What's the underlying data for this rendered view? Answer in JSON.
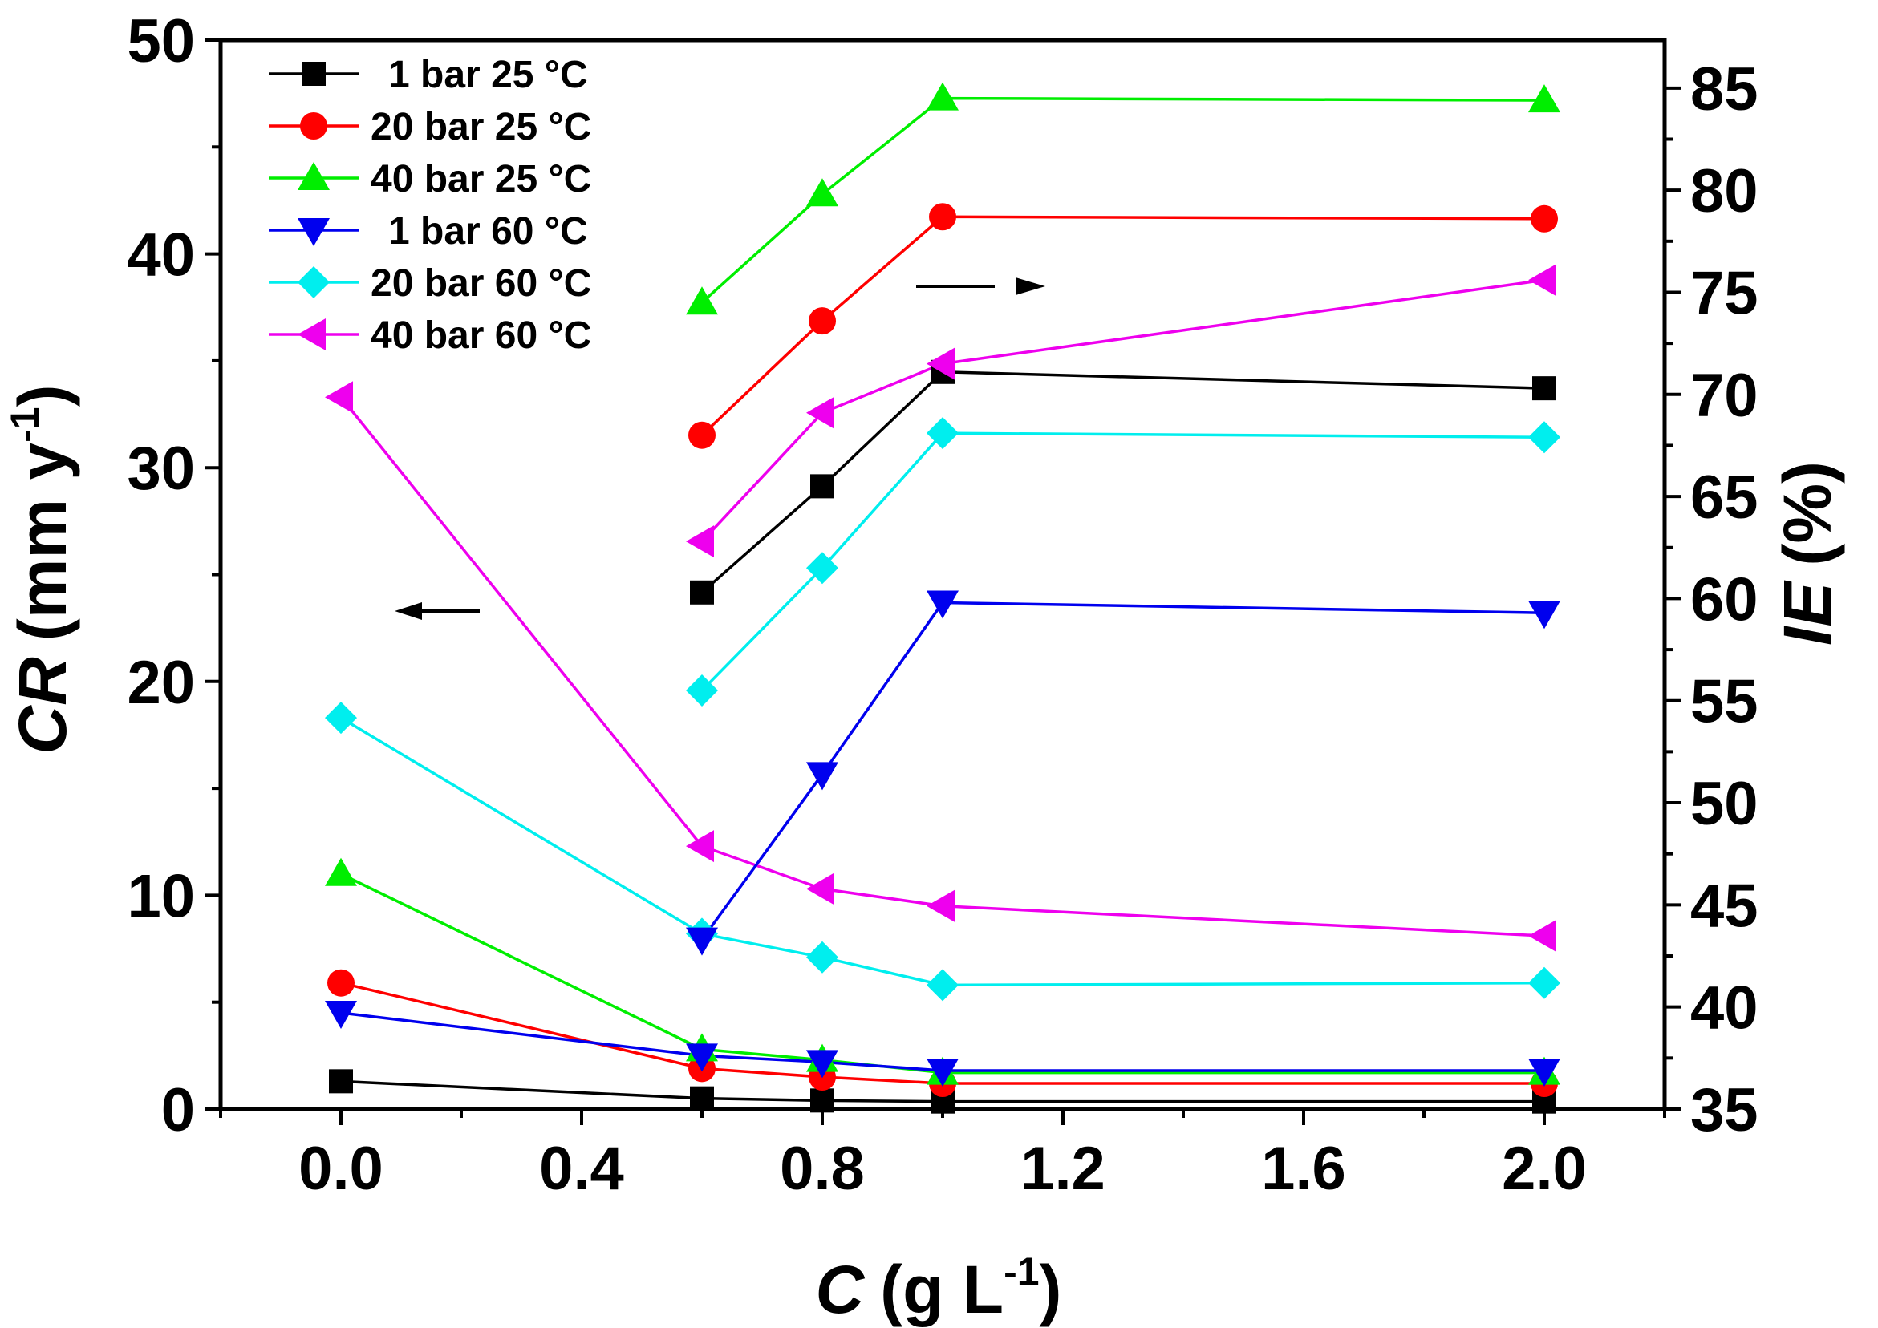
{
  "chart_data": {
    "type": "line",
    "x_axis": {
      "title_var": "C",
      "title_units": "(g L",
      "title_exp": "-1",
      "title_close": ")",
      "range": [
        -0.2,
        2.2
      ],
      "ticks": [
        0.0,
        0.4,
        0.8,
        1.2,
        1.6,
        2.0
      ],
      "tick_labels": [
        "0.0",
        "0.4",
        "0.8",
        "1.2",
        "1.6",
        "2.0"
      ]
    },
    "y_left": {
      "title_var": "CR",
      "title_units": "(mm y",
      "title_exp": "-1",
      "title_close": ")",
      "range": [
        0,
        50
      ],
      "ticks": [
        0,
        10,
        20,
        30,
        40,
        50
      ],
      "tick_labels": [
        "0",
        "10",
        "20",
        "30",
        "40",
        "50"
      ]
    },
    "y_right": {
      "title_var": "IE",
      "title_units": "(%)",
      "range": [
        35,
        87.35
      ],
      "ticks": [
        35,
        40,
        45,
        50,
        55,
        60,
        65,
        70,
        75,
        80,
        85
      ],
      "tick_labels": [
        "35",
        "40",
        "45",
        "50",
        "55",
        "60",
        "65",
        "70",
        "75",
        "80",
        "85"
      ]
    },
    "legend": [
      "1 bar 25 °C",
      "20 bar 25 °C",
      "40 bar 25 °C",
      "1 bar 60 °C",
      "20 bar 60 °C",
      "40 bar 60 °C"
    ],
    "cr_series": [
      {
        "name": "1 bar 25 °C",
        "color": "#000000",
        "marker": "square",
        "x": [
          0,
          0.6,
          0.8,
          1.0,
          2.0
        ],
        "values": [
          1.3,
          0.5,
          0.4,
          0.35,
          0.35
        ]
      },
      {
        "name": "20 bar 25 °C",
        "color": "#ff0000",
        "marker": "circle",
        "x": [
          0,
          0.6,
          0.8,
          1.0,
          2.0
        ],
        "values": [
          5.9,
          1.9,
          1.5,
          1.2,
          1.2
        ]
      },
      {
        "name": "40 bar 25 °C",
        "color": "#00ee00",
        "marker": "triangle-up",
        "x": [
          0,
          0.6,
          0.8,
          1.0,
          2.0
        ],
        "values": [
          11.0,
          2.8,
          2.3,
          1.7,
          1.7
        ]
      },
      {
        "name": "1 bar 60 °C",
        "color": "#0000ee",
        "marker": "triangle-down",
        "x": [
          0,
          0.6,
          0.8,
          1.0,
          2.0
        ],
        "values": [
          4.5,
          2.5,
          2.2,
          1.8,
          1.8
        ]
      },
      {
        "name": "20 bar 60 °C",
        "color": "#00eeee",
        "marker": "diamond",
        "x": [
          0,
          0.6,
          0.8,
          1.0,
          2.0
        ],
        "values": [
          18.3,
          8.2,
          7.1,
          5.8,
          5.9
        ]
      },
      {
        "name": "40 bar 60 °C",
        "color": "#ee00ee",
        "marker": "triangle-left",
        "x": [
          0,
          0.6,
          0.8,
          1.0,
          2.0
        ],
        "values": [
          33.3,
          12.3,
          10.3,
          9.5,
          8.1
        ]
      }
    ],
    "ie_series": [
      {
        "name": "1 bar 25 °C",
        "color": "#000000",
        "marker": "square",
        "x": [
          0.6,
          0.8,
          1.0,
          2.0
        ],
        "values": [
          60.3,
          65.5,
          71.1,
          70.3
        ]
      },
      {
        "name": "20 bar 25 °C",
        "color": "#ff0000",
        "marker": "circle",
        "x": [
          0.6,
          0.8,
          1.0,
          2.0
        ],
        "values": [
          68.0,
          73.6,
          78.7,
          78.6
        ]
      },
      {
        "name": "40 bar 25 °C",
        "color": "#00ee00",
        "marker": "triangle-up",
        "x": [
          0.6,
          0.8,
          1.0,
          2.0
        ],
        "values": [
          74.5,
          79.8,
          84.5,
          84.4
        ]
      },
      {
        "name": "1 bar 60 °C",
        "color": "#0000ee",
        "marker": "triangle-down",
        "x": [
          0.6,
          0.8,
          1.0,
          2.0
        ],
        "values": [
          43.3,
          51.4,
          59.8,
          59.3
        ]
      },
      {
        "name": "20 bar 60 °C",
        "color": "#00eeee",
        "marker": "diamond",
        "x": [
          0.6,
          0.8,
          1.0,
          2.0
        ],
        "values": [
          55.5,
          61.5,
          68.1,
          67.9
        ]
      },
      {
        "name": "40 bar 60 °C",
        "color": "#ee00ee",
        "marker": "triangle-left",
        "x": [
          0.6,
          0.8,
          1.0,
          2.0
        ],
        "values": [
          62.8,
          69.1,
          71.5,
          75.6
        ]
      }
    ],
    "annotations": [
      {
        "name": "left-arrow",
        "meaning": "CR data read on left axis"
      },
      {
        "name": "right-arrow",
        "meaning": "IE data read on right axis"
      }
    ]
  }
}
